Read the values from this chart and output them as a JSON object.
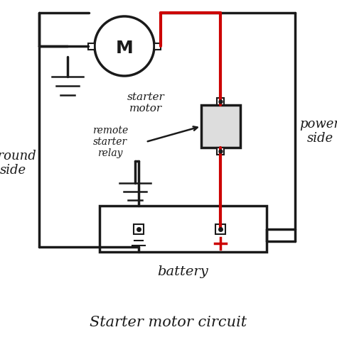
{
  "bg_color": "#FFFFFF",
  "line_color": "#1a1a1a",
  "red_color": "#CC0000",
  "title": "Starter motor circuit",
  "title_fontsize": 15,
  "labels": {
    "ground_side": "ground\nside",
    "power_side": "power\nside",
    "starter_motor": "starter\nmotor",
    "remote_relay": "remote\nstarter\nrelay",
    "battery": "battery",
    "motor_M": "M"
  },
  "figsize": [
    4.74,
    4.82
  ],
  "dpi": 100
}
